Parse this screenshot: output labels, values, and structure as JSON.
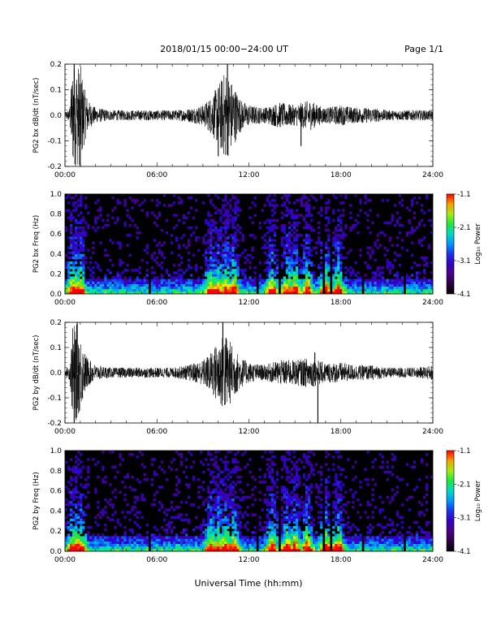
{
  "header": {
    "date_range": "2018/01/15   00:00−24:00 UT",
    "page": "Page 1/1"
  },
  "xlabel": "Universal Time (hh:mm)",
  "time_ticks": [
    "00:00",
    "06:00",
    "12:00",
    "18:00",
    "24:00"
  ],
  "colorbar": {
    "label": "Log₁₀ Power",
    "ticks": [
      "-1.1",
      "-2.1",
      "-3.1",
      "-4.1"
    ],
    "range": [
      -4.1,
      -1.1
    ]
  },
  "chart_data": [
    {
      "type": "line",
      "ylabel": "PG2 bx dB/dt (nT/sec)",
      "ylim": [
        -0.2,
        0.2
      ],
      "xlim_hours": [
        0,
        24
      ],
      "yticks": [
        "0.2",
        "0.1",
        "0.0",
        "-0.1",
        "-0.2"
      ],
      "envelope": {
        "hours": [
          0,
          0.3,
          0.5,
          0.7,
          1.0,
          1.3,
          1.6,
          2.0,
          3.0,
          4.0,
          5.0,
          6.0,
          7.0,
          8.0,
          9.0,
          9.5,
          10.0,
          10.5,
          11.0,
          11.5,
          12.0,
          13.0,
          14.0,
          15.0,
          16.0,
          16.5,
          17.0,
          18.0,
          19.0,
          20.0,
          21.0,
          22.0,
          23.0,
          24.0
        ],
        "amplitude": [
          0.01,
          0.03,
          0.2,
          0.2,
          0.2,
          0.1,
          0.05,
          0.03,
          0.02,
          0.02,
          0.02,
          0.02,
          0.02,
          0.025,
          0.04,
          0.07,
          0.12,
          0.18,
          0.12,
          0.06,
          0.04,
          0.03,
          0.05,
          0.04,
          0.06,
          0.04,
          0.03,
          0.04,
          0.03,
          0.03,
          0.02,
          0.02,
          0.02,
          0.02
        ]
      },
      "spikes": [
        {
          "hour": 0.6,
          "value": 0.2
        },
        {
          "hour": 1.0,
          "value": -0.2
        },
        {
          "hour": 10.0,
          "value": -0.16
        },
        {
          "hour": 10.6,
          "value": 0.2
        },
        {
          "hour": 15.4,
          "value": -0.12
        }
      ]
    },
    {
      "type": "heatmap",
      "ylabel": "PG2 bx Freq (Hz)",
      "ylim": [
        0.0,
        1.0
      ],
      "yticks": [
        "1.0",
        "0.8",
        "0.6",
        "0.4",
        "0.2",
        "0.0"
      ],
      "value_range": [
        -4.1,
        -1.1
      ],
      "active_hours": [
        0.5,
        0.7,
        1.0,
        9.5,
        10.0,
        10.5,
        11.0,
        13.5,
        14.5,
        15.0,
        15.8,
        17.0,
        17.8
      ],
      "gap_hours": [
        1.6,
        5.5,
        12.6,
        14.0,
        16.9,
        17.4,
        19.5,
        22.2
      ]
    },
    {
      "type": "line",
      "ylabel": "PG2 by dB/dt (nT/sec)",
      "ylim": [
        -0.2,
        0.2
      ],
      "xlim_hours": [
        0,
        24
      ],
      "yticks": [
        "0.2",
        "0.1",
        "0.0",
        "-0.1",
        "-0.2"
      ],
      "envelope": {
        "hours": [
          0,
          0.3,
          0.5,
          0.7,
          1.0,
          1.3,
          1.6,
          2.0,
          3.0,
          4.0,
          5.0,
          6.0,
          7.0,
          8.0,
          9.0,
          9.5,
          10.0,
          10.5,
          11.0,
          11.5,
          12.0,
          13.0,
          14.0,
          15.0,
          16.0,
          16.5,
          17.0,
          18.0,
          19.0,
          20.0,
          21.0,
          22.0,
          23.0,
          24.0
        ],
        "amplitude": [
          0.01,
          0.03,
          0.18,
          0.2,
          0.15,
          0.08,
          0.05,
          0.03,
          0.02,
          0.02,
          0.02,
          0.02,
          0.02,
          0.03,
          0.05,
          0.08,
          0.13,
          0.16,
          0.1,
          0.06,
          0.04,
          0.03,
          0.05,
          0.05,
          0.06,
          0.05,
          0.04,
          0.04,
          0.03,
          0.03,
          0.02,
          0.02,
          0.02,
          0.03
        ]
      },
      "spikes": [
        {
          "hour": 0.6,
          "value": -0.2
        },
        {
          "hour": 0.8,
          "value": 0.2
        },
        {
          "hour": 10.3,
          "value": 0.2
        },
        {
          "hour": 16.5,
          "value": -0.2
        },
        {
          "hour": 16.3,
          "value": 0.08
        }
      ]
    },
    {
      "type": "heatmap",
      "ylabel": "PG2 by Freq (Hz)",
      "ylim": [
        0.0,
        1.0
      ],
      "yticks": [
        "1.0",
        "0.8",
        "0.6",
        "0.4",
        "0.2",
        "0.0"
      ],
      "value_range": [
        -4.1,
        -1.1
      ],
      "active_hours": [
        0.5,
        0.7,
        1.0,
        9.5,
        10.0,
        10.5,
        11.0,
        13.5,
        14.5,
        15.0,
        15.8,
        17.0,
        17.8
      ],
      "gap_hours": [
        1.6,
        5.5,
        12.6,
        14.0,
        16.9,
        17.4,
        19.5,
        22.2
      ]
    }
  ]
}
